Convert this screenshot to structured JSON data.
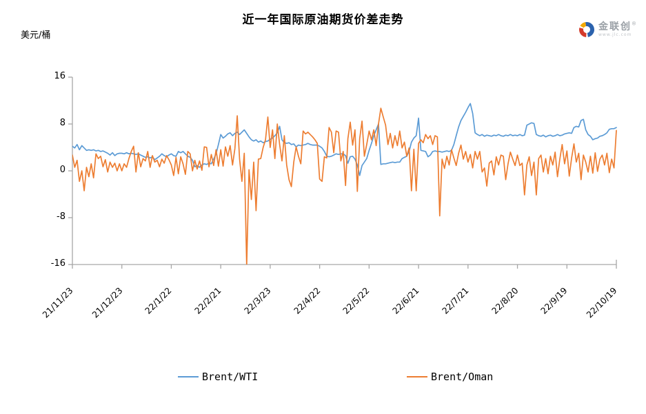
{
  "page": {
    "title": "近一年国际原油期货价差走势",
    "unit_label": "美元/桶"
  },
  "logo": {
    "brand": "金联创",
    "reg": "®",
    "site": "www.jlc.com",
    "icon_colors": {
      "blue": "#2b62ad",
      "red": "#d43a2a",
      "yellow": "#f2a900"
    }
  },
  "legend": [
    {
      "label": "Brent/WTI",
      "color": "#5B9BD5"
    },
    {
      "label": "Brent/Oman",
      "color": "#ED7D31"
    }
  ],
  "axis": {
    "line_color": "#A6A6A6",
    "text_color": "#000000"
  },
  "chart_data": {
    "type": "line",
    "title": "近一年国际原油期货价差走势",
    "ylabel": "美元/桶",
    "ylim": [
      -16,
      16
    ],
    "y_ticks": [
      16,
      8,
      0,
      -8,
      -16
    ],
    "grid": false,
    "legend_position": "bottom",
    "x_tick_labels": [
      "21/11/23",
      "21/12/23",
      "22/1/22",
      "22/2/21",
      "22/3/23",
      "22/4/22",
      "22/5/22",
      "22/6/21",
      "22/7/21",
      "22/8/20",
      "22/9/19",
      "22/10/19"
    ],
    "series": [
      {
        "name": "Brent/WTI",
        "color": "#5B9BD5",
        "values": [
          4.2,
          3.9,
          4.5,
          3.6,
          4.3,
          3.9,
          3.5,
          3.6,
          3.5,
          3.6,
          3.4,
          3.5,
          3.3,
          3.4,
          3.2,
          3.0,
          2.7,
          3.1,
          2.6,
          2.9,
          3.0,
          3.0,
          2.9,
          3.1,
          2.9,
          3.0,
          2.9,
          2.8,
          2.9,
          2.7,
          2.5,
          2.3,
          2.4,
          2.2,
          2.4,
          1.9,
          2.2,
          2.5,
          2.9,
          2.6,
          2.4,
          2.7,
          2.9,
          2.6,
          2.5,
          3.3,
          3.1,
          3.3,
          2.9,
          2.5,
          2.3,
          1.8,
          0.7,
          0.9,
          0.6,
          1.0,
          1.2,
          1.1,
          1.3,
          1.2,
          2.0,
          2.9,
          4.5,
          6.2,
          5.6,
          5.9,
          6.3,
          6.5,
          6.0,
          6.4,
          6.6,
          6.2,
          6.6,
          7.0,
          6.4,
          5.8,
          5.3,
          5.1,
          5.3,
          4.9,
          5.1,
          4.8,
          5.0,
          5.1,
          5.4,
          5.6,
          6.0,
          6.5,
          7.6,
          5.3,
          4.8,
          4.7,
          4.8,
          4.5,
          4.6,
          4.1,
          4.4,
          4.3,
          4.4,
          4.5,
          4.7,
          4.5,
          4.4,
          4.4,
          4.4,
          4.2,
          3.9,
          3.3,
          2.5,
          2.4,
          2.5,
          2.7,
          2.9,
          2.8,
          2.9,
          2.9,
          2.6,
          1.3,
          2.4,
          2.5,
          2.0,
          1.0,
          -0.8,
          0.9,
          1.5,
          2.1,
          3.5,
          4.7,
          6.0,
          7.0,
          8.0,
          1.1,
          1.2,
          1.2,
          1.3,
          1.4,
          1.5,
          1.4,
          1.5,
          1.5,
          2.1,
          2.3,
          2.5,
          3.3,
          4.9,
          5.6,
          6.0,
          9.0,
          3.5,
          3.4,
          3.3,
          2.4,
          2.7,
          3.3,
          3.4,
          3.3,
          3.3,
          3.2,
          3.3,
          3.4,
          3.3,
          3.5,
          4.5,
          6.0,
          7.5,
          8.6,
          9.3,
          10.0,
          10.8,
          11.5,
          9.8,
          6.5,
          6.2,
          6.0,
          6.2,
          5.9,
          6.1,
          6.0,
          5.9,
          6.1,
          6.0,
          6.2,
          6.0,
          5.9,
          6.1,
          6.0,
          6.2,
          6.0,
          6.1,
          6.0,
          6.2,
          6.0,
          6.1,
          7.8,
          8.0,
          8.2,
          8.1,
          6.2,
          6.0,
          5.9,
          6.1,
          5.8,
          6.0,
          6.1,
          5.9,
          6.0,
          6.2,
          6.0,
          6.1,
          6.3,
          6.4,
          6.5,
          6.4,
          7.4,
          7.6,
          7.5,
          8.6,
          8.8,
          7.0,
          6.2,
          5.9,
          5.3,
          5.5,
          5.6,
          5.9,
          6.0,
          6.2,
          6.5,
          7.1,
          7.2,
          7.2,
          7.4
        ]
      },
      {
        "name": "Brent/Oman",
        "color": "#ED7D31",
        "values": [
          2.7,
          0.6,
          1.8,
          -1.8,
          0.0,
          -3.4,
          0.6,
          -1.0,
          1.2,
          -1.2,
          2.9,
          2.1,
          2.5,
          0.7,
          1.9,
          -0.2,
          1.5,
          0.6,
          1.3,
          0.0,
          1.2,
          0.0,
          1.2,
          0.6,
          2.1,
          3.3,
          4.2,
          -0.2,
          3.1,
          0.7,
          2.1,
          1.7,
          3.3,
          0.6,
          2.6,
          1.5,
          1.8,
          0.7,
          2.0,
          1.3,
          2.6,
          1.9,
          1.0,
          -0.8,
          2.3,
          -0.5,
          2.4,
          1.2,
          -0.6,
          3.3,
          2.9,
          0.0,
          1.8,
          0.3,
          1.7,
          0.1,
          4.1,
          4.0,
          0.7,
          2.8,
          0.9,
          3.6,
          0.8,
          3.6,
          0.8,
          4.1,
          2.5,
          4.3,
          1.0,
          3.8,
          9.4,
          2.0,
          -1.8,
          3.0,
          -16.2,
          0.2,
          -4.9,
          1.5,
          -6.8,
          2.0,
          2.1,
          4.0,
          5.3,
          9.2,
          4.0,
          7.0,
          2.1,
          8.0,
          4.5,
          1.7,
          6.0,
          1.0,
          -1.5,
          -2.7,
          1.5,
          4.1,
          2.5,
          1.2,
          6.8,
          6.3,
          6.6,
          6.2,
          5.8,
          5.3,
          4.7,
          -1.4,
          -1.8,
          2.4,
          2.2,
          7.4,
          6.6,
          3.1,
          6.8,
          6.6,
          1.7,
          3.3,
          -2.5,
          5.5,
          8.3,
          4.4,
          7.0,
          -3.5,
          5.5,
          8.5,
          2.5,
          4.5,
          6.8,
          5.3,
          7.0,
          4.3,
          8.0,
          10.7,
          9.2,
          7.8,
          4.5,
          6.4,
          3.9,
          6.0,
          4.3,
          6.8,
          3.9,
          4.9,
          2.5,
          3.9,
          -3.4,
          3.7,
          -3.4,
          4.7,
          5.3,
          4.8,
          6.2,
          5.5,
          6.0,
          4.5,
          6.0,
          5.8,
          -7.7,
          2.0,
          0.4,
          2.5,
          1.0,
          3.6,
          2.2,
          0.9,
          3.0,
          4.4,
          2.0,
          3.3,
          1.5,
          2.8,
          0.5,
          3.3,
          2.0,
          3.3,
          -0.2,
          0.5,
          -2.6,
          1.3,
          1.7,
          -0.7,
          2.4,
          1.0,
          2.7,
          2.5,
          -1.5,
          1.2,
          3.2,
          2.0,
          0.9,
          2.7,
          0.9,
          1.3,
          -4.1,
          1.0,
          2.4,
          -0.8,
          1.5,
          -4.1,
          2.1,
          2.7,
          -0.2,
          2.1,
          -0.5,
          2.5,
          1.0,
          3.2,
          -1.0,
          2.0,
          4.5,
          1.2,
          3.4,
          -0.9,
          2.2,
          4.6,
          1.5,
          3.0,
          -1.5,
          2.7,
          1.5,
          -0.2,
          2.5,
          -0.4,
          3.1,
          -0.1,
          2.0,
          2.7,
          1.0,
          3.0,
          -0.3,
          2.0,
          0.5,
          6.9
        ]
      }
    ]
  }
}
